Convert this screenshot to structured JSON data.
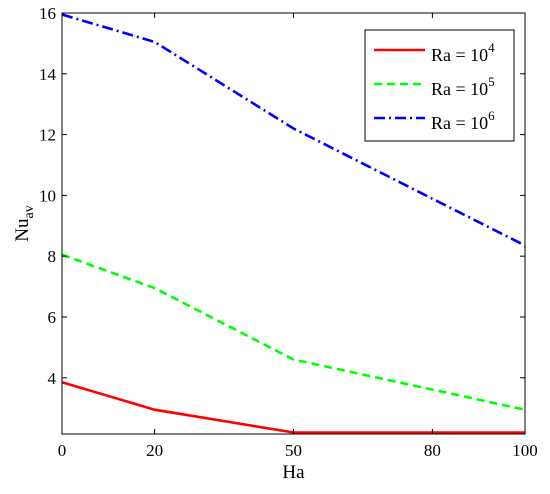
{
  "chart_data": {
    "type": "line",
    "xlabel": "Ha",
    "ylabel": {
      "base": "Nu",
      "sub": "av"
    },
    "xlim": [
      0,
      100
    ],
    "ylim": [
      2.15,
      16
    ],
    "x_ticks": [
      0,
      20,
      50,
      80,
      100
    ],
    "x_tick_positions": [
      0,
      20,
      50,
      80,
      100
    ],
    "y_ticks": [
      4,
      6,
      8,
      10,
      12,
      14,
      16
    ],
    "grid": false,
    "legend_position": "top-right",
    "x": [
      0,
      20,
      50,
      100
    ],
    "series": [
      {
        "name": "Ra = 10^4",
        "name_base": "Ra = 10",
        "name_exp": "4",
        "color": "#ff0000",
        "dash": "solid",
        "values": [
          3.85,
          2.95,
          2.2,
          2.2
        ]
      },
      {
        "name": "Ra = 10^5",
        "name_base": "Ra = 10",
        "name_exp": "5",
        "color": "#00ff00",
        "dash": "dashed",
        "values": [
          8.05,
          6.95,
          4.6,
          2.95
        ]
      },
      {
        "name": "Ra = 10^6",
        "name_base": "Ra = 10",
        "name_exp": "6",
        "color": "#0000ff",
        "dash": "dash-dot",
        "values": [
          15.95,
          15.05,
          12.2,
          8.35
        ]
      }
    ]
  }
}
